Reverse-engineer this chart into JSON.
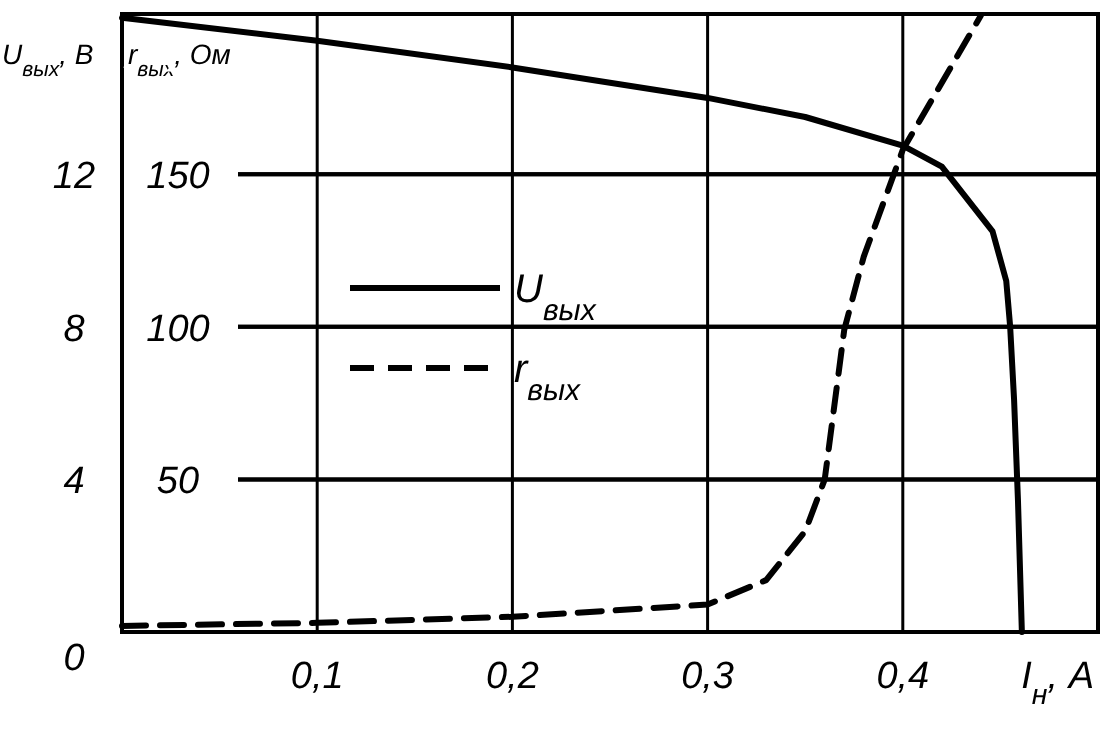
{
  "chart_data": {
    "type": "line",
    "xlabel": "I$_{н}$, A",
    "ylabel": "U$_{вых}$, В",
    "y2label": "r$_{вых}$, Ом",
    "xlim": [
      0,
      0.5
    ],
    "xticks": [
      {
        "value": 0.1,
        "label": "0,1"
      },
      {
        "value": 0.2,
        "label": "0,2"
      },
      {
        "value": 0.3,
        "label": "0,3"
      },
      {
        "value": 0.4,
        "label": "0,4"
      }
    ],
    "ylim": [
      0,
      16.2
    ],
    "yticks": [
      0,
      4,
      8,
      12
    ],
    "y2lim": [
      0,
      202.5
    ],
    "y2ticks": [
      50,
      100,
      150
    ],
    "grid": true,
    "legend": "center",
    "series": [
      {
        "name": "U$_{вых}$",
        "color": "#000000",
        "line_style": "solid",
        "x": [
          0,
          0.1,
          0.2,
          0.3,
          0.35,
          0.4,
          0.42,
          0.446,
          0.453,
          0.455,
          0.457,
          0.459,
          0.461
        ],
        "values": [
          16.1,
          15.5,
          14.8,
          14.0,
          13.5,
          12.75,
          12.2,
          10.5,
          9.2,
          8,
          6.1,
          3.45,
          0
        ]
      },
      {
        "name": "r$_{вых}$",
        "color": "#000000",
        "line_style": "dashed",
        "axis": "y2",
        "x": [
          0,
          0.1,
          0.2,
          0.3,
          0.33,
          0.35,
          0.36,
          0.37,
          0.38,
          0.4,
          0.42,
          0.44
        ],
        "values": [
          2,
          3,
          5,
          9,
          17,
          33,
          50,
          99,
          123,
          158,
          180,
          202
        ]
      }
    ]
  }
}
